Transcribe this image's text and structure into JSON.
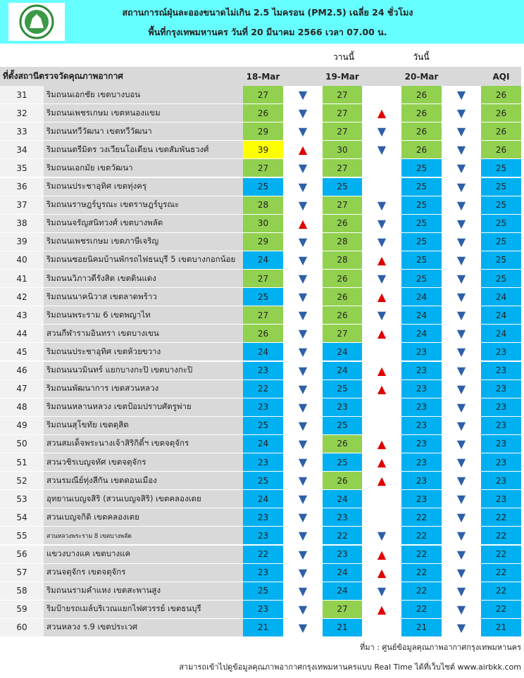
{
  "header": {
    "title": [
      "สถานการณ์ฝุ่นละอองขนาดไม่เกิน 2.5 ไมครอน (PM2.5) เฉลี่ย 24 ชั่วโมง",
      "พื้นที่กรุงเทพมหานคร วันที่ 20 มีนาคม 2566 เวลา 07.00 น."
    ],
    "yesterday": "วานนี้",
    "today": "วันนี้"
  },
  "table": {
    "columns": [
      "ที่ตั้งสถานีตรวจวัดคุณภาพอากาศ",
      "18-Mar",
      "19-Mar",
      "20-Mar",
      "AQI"
    ],
    "rows": [
      [
        31,
        "ริมถนนเอกชัย เขตบางบอน",
        27,
        "▼",
        27,
        null,
        26,
        "▼",
        26
      ],
      [
        32,
        "ริมถนนเพชรเกษม เขตหนองแขม",
        26,
        "▼",
        27,
        "▲",
        26,
        "▼",
        26
      ],
      [
        33,
        "ริมถนนทวีวัฒนา เขตทวีวัฒนา",
        29,
        "▼",
        27,
        "▼",
        26,
        "▼",
        26
      ],
      [
        34,
        "ริมถนนตรีมิตร วงเวียนโอเดียน เขตสัมพันธวงศ์",
        39,
        "▲",
        30,
        "▼",
        26,
        "▼",
        26
      ],
      [
        35,
        "ริมถนนเอกมัย เขตวัฒนา",
        27,
        "▼",
        27,
        null,
        25,
        "▼",
        25
      ],
      [
        36,
        "ริมถนนประชาอุทิศ เขตทุ่งครุ",
        25,
        "▼",
        25,
        null,
        25,
        "▼",
        25
      ],
      [
        37,
        "ริมถนนราษฎร์บูรณะ เขตราษฎร์บูรณะ",
        28,
        "▼",
        27,
        "▼",
        25,
        "▼",
        25
      ],
      [
        38,
        "ริมถนนจรัญสนิทวงศ์ เขตบางพลัด",
        30,
        "▲",
        26,
        "▼",
        25,
        "▼",
        25
      ],
      [
        39,
        "ริมถนนเพชรเกษม เขตภาษีเจริญ",
        29,
        "▼",
        28,
        "▼",
        25,
        "▼",
        25
      ],
      [
        40,
        "ริมถนนซอยนิคมบ้านพักรถไฟธนบุรี 5 เขตบางกอกน้อย",
        24,
        "▼",
        28,
        "▲",
        25,
        "▼",
        25
      ],
      [
        41,
        "ริมถนนวิภาวดีรังสิต เขตดินแดง",
        27,
        "▼",
        26,
        "▼",
        25,
        "▼",
        25
      ],
      [
        42,
        "ริมถนนนาคนิวาส เขตลาดพร้าว",
        25,
        "▼",
        26,
        "▲",
        24,
        "▼",
        24
      ],
      [
        43,
        "ริมถนนพระราม 6 เขตพญาไท",
        27,
        "▼",
        26,
        "▼",
        24,
        "▼",
        24
      ],
      [
        44,
        "สวนกีฬารามอินทรา เขตบางเขน",
        26,
        "▼",
        27,
        "▲",
        24,
        "▼",
        24
      ],
      [
        45,
        "ริมถนนประชาอุทิศ เขตห้วยขวาง",
        24,
        "▼",
        24,
        null,
        23,
        "▼",
        23
      ],
      [
        46,
        "ริมถนนนวมินทร์ แยกบางกะปิ เขตบางกะปิ",
        23,
        "▼",
        24,
        "▲",
        23,
        "▼",
        23
      ],
      [
        47,
        "ริมถนนพัฒนาการ เขตสวนหลวง",
        22,
        "▼",
        25,
        "▲",
        23,
        "▼",
        23
      ],
      [
        48,
        "ริมถนนหลานหลวง เขตป้อมปราบศัตรูพ่าย",
        23,
        "▼",
        23,
        null,
        23,
        "▼",
        23
      ],
      [
        49,
        "ริมถนนสุโขทัย เขตดุสิต",
        25,
        "▼",
        25,
        null,
        23,
        "▼",
        23
      ],
      [
        50,
        "สวนสมเด็จพระนางเจ้าสิริกิติ์ฯ เขตจตุจักร",
        24,
        "▼",
        26,
        "▲",
        23,
        "▼",
        23
      ],
      [
        51,
        "สวนวชิรเบญจทัศ เขตจตุจักร",
        23,
        "▼",
        25,
        "▲",
        23,
        "▼",
        23
      ],
      [
        52,
        "สวนรมณีย์ทุ่งสีกัน เขตดอนเมือง",
        25,
        "▼",
        26,
        "▲",
        23,
        "▼",
        23
      ],
      [
        53,
        "อุทยานเบญจสิริ (สวนเบญจสิริ) เขตคลองเตย",
        24,
        "▼",
        24,
        null,
        23,
        "▼",
        23
      ],
      [
        54,
        "สวนเบญจกิติ เขตคลองเตย",
        23,
        "▼",
        23,
        null,
        22,
        "▼",
        22
      ],
      [
        55,
        "สวนหลวงพระราม 8 เขตบางพลัด",
        23,
        "▼",
        22,
        "▼",
        22,
        "▼",
        22
      ],
      [
        56,
        "แขวงบางแค เขตบางแค",
        22,
        "▼",
        23,
        "▲",
        22,
        "▼",
        22
      ],
      [
        57,
        "สวนจตุจักร เขตจตุจักร",
        23,
        "▼",
        24,
        "▲",
        22,
        "▼",
        22
      ],
      [
        58,
        "ริมถนนรามคำแหง เขตสะพานสูง",
        25,
        "▼",
        24,
        "▼",
        22,
        "▼",
        22
      ],
      [
        59,
        "ริมป้ายรถเมล์บริเวณแยกไฟศวรรย์ เขตธนบุรี",
        23,
        "▼",
        27,
        "▲",
        22,
        "▼",
        22
      ],
      [
        60,
        "สวนหลวง ร.9 เขตประเวศ",
        21,
        "▼",
        21,
        null,
        21,
        "▼",
        21
      ]
    ]
  },
  "footer": {
    "source": "ที่มา : ศูนย์ข้อมูลคุณภาพอากาศกรุงเทพมหานคร",
    "link": "สามารถเข้าไปดูข้อมูลคุณภาพอากาศกรุงเทพมหานครแบบ Real Time ได้ที่เว็บไซต์ www.airbkk.com"
  }
}
